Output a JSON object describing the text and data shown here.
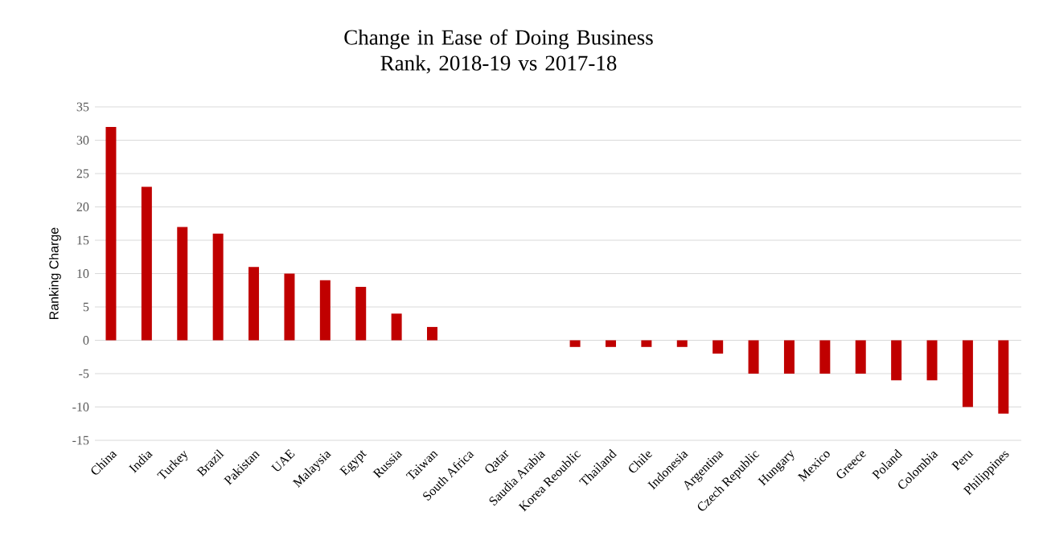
{
  "chart_data": {
    "type": "bar",
    "title": "Change in Ease of Doing Business Rank, 2018-19 vs 2017-18",
    "ylabel": "Ranking Charge",
    "categories": [
      "China",
      "India",
      "Turkey",
      "Brazil",
      "Pakistan",
      "UAE",
      "Malaysia",
      "Egypt",
      "Russia",
      "Taiwan",
      "South Africa",
      "Qatar",
      "Saudia Arabia",
      "Korea Reoublic",
      "Thailand",
      "Chile",
      "Indonesia",
      "Argentina",
      "Czech Republic",
      "Hungary",
      "Mexico",
      "Greece",
      "Poland",
      "Colombia",
      "Peru",
      "Philippines"
    ],
    "values": [
      32,
      23,
      17,
      16,
      11,
      10,
      9,
      8,
      4,
      2,
      0,
      0,
      0,
      -1,
      -1,
      -1,
      -1,
      -2,
      -5,
      -5,
      -5,
      -5,
      -6,
      -6,
      -10,
      -11
    ],
    "color": "#c00000",
    "ylim": [
      -15,
      35
    ],
    "yticks": [
      -15,
      -10,
      -5,
      0,
      5,
      10,
      15,
      20,
      25,
      30,
      35
    ],
    "grid": "y"
  }
}
